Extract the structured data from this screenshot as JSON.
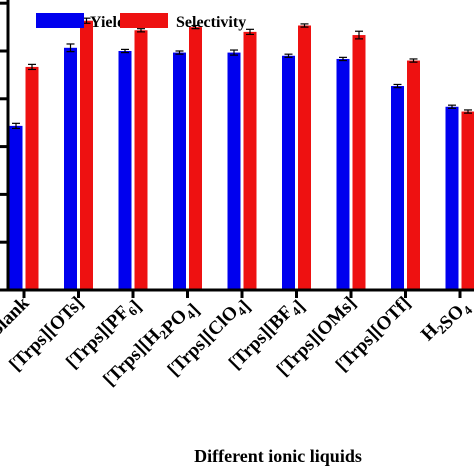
{
  "chart_data": {
    "type": "bar",
    "xlabel": "Different ionic liquids",
    "ylabel": "",
    "categories": [
      "Blank",
      "[Trps][OTs]",
      "[Trps][PF6]",
      "[Trps][H2PO4]",
      "[Trps][ClO4]",
      "[Trps][BF4]",
      "[Trps][OMs]",
      "[Trps][OTf]",
      "H2SO4"
    ],
    "series": [
      {
        "name": "Yield",
        "color": "#0000ee",
        "values": [
          31.5,
          56,
          55,
          54.5,
          54.5,
          53.5,
          52.5,
          44,
          37.5
        ],
        "errors": [
          0.8,
          1.2,
          0.5,
          0.5,
          0.8,
          0.5,
          0.5,
          0.5,
          0.5
        ]
      },
      {
        "name": "Selectivity",
        "color": "#ee1111",
        "values": [
          50,
          64.5,
          61.5,
          62.5,
          61,
          63,
          60,
          52,
          36
        ],
        "errors": [
          0.8,
          0.8,
          0.5,
          0.5,
          0.8,
          0.5,
          1.2,
          0.5,
          0.5
        ]
      }
    ],
    "ylim": [
      -20,
      71
    ],
    "grid": false,
    "legend": "top"
  }
}
